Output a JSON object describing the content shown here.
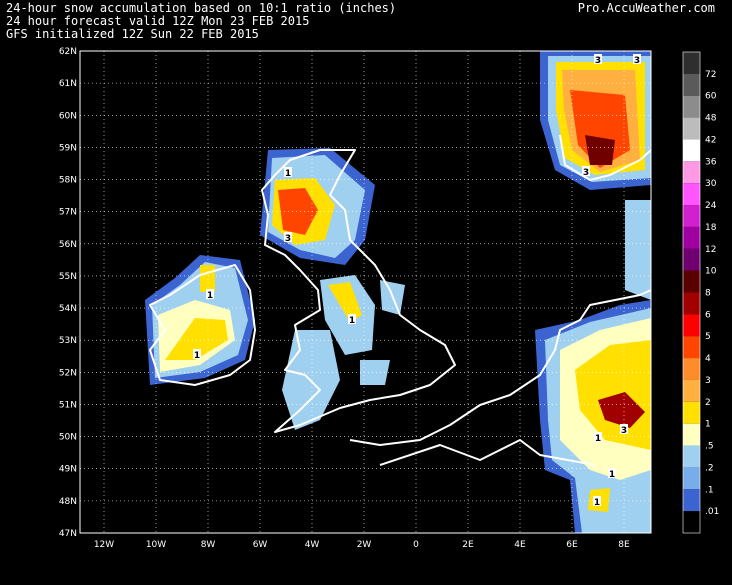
{
  "header": {
    "lines": [
      "24-hour snow accumulation based on 10:1 ratio (inches)",
      "24 hour forecast valid 12Z Mon 23 FEB 2015",
      "GFS initialized 12Z Sun 22 FEB 2015"
    ],
    "site": "Pro.AccuWeather.com"
  },
  "map": {
    "lat_labels": [
      "62N",
      "61N",
      "60N",
      "59N",
      "58N",
      "57N",
      "56N",
      "55N",
      "54N",
      "53N",
      "52N",
      "51N",
      "50N",
      "49N",
      "48N",
      "47N"
    ],
    "lon_labels": [
      "12W",
      "10W",
      "8W",
      "6W",
      "4W",
      "2W",
      "0",
      "2E",
      "4E",
      "6E",
      "8E"
    ],
    "contour_labels": [
      "3",
      "3",
      "3",
      "1",
      "3",
      "1",
      "1",
      "1",
      "1",
      "1",
      "3",
      "1"
    ]
  },
  "legend": {
    "labels": [
      "72",
      "60",
      "48",
      "42",
      "36",
      "30",
      "24",
      "18",
      "12",
      "10",
      "8",
      "6",
      "5",
      "4",
      "3",
      "2",
      "1",
      ".5",
      ".2",
      ".1",
      ".01"
    ],
    "colors": [
      "#2e2e2e",
      "#5a5a5a",
      "#8c8c8c",
      "#bcbcbc",
      "#ffffff",
      "#ff99e6",
      "#ff55ff",
      "#d020d0",
      "#a000a0",
      "#700070",
      "#5a0000",
      "#a00000",
      "#ff0000",
      "#ff4500",
      "#ff8c2a",
      "#ffb040",
      "#ffe000",
      "#ffffc0",
      "#a0d0f0",
      "#78acea",
      "#3c64d0",
      "#000000"
    ]
  }
}
